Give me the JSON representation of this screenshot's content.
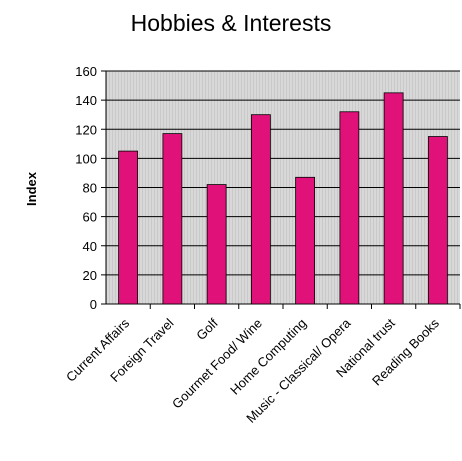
{
  "chart_data": {
    "type": "bar",
    "title": "Hobbies & Interests",
    "xlabel": "",
    "ylabel": "Index",
    "ylim": [
      0,
      160
    ],
    "yticks": [
      0,
      20,
      40,
      60,
      80,
      100,
      120,
      140,
      160
    ],
    "grid": true,
    "categories": [
      "Current Affairs",
      "Foreign Travel",
      "Golf",
      "Gourmet Food/ Wine",
      "Home Computing",
      "Music - Classical/ Opera",
      "National trust",
      "Reading Books"
    ],
    "values": [
      105,
      117,
      82,
      130,
      87,
      132,
      145,
      115
    ],
    "colors": {
      "bar": "#e0127a",
      "plot_bg": "#c9c9c9",
      "grid": "#000000"
    }
  }
}
